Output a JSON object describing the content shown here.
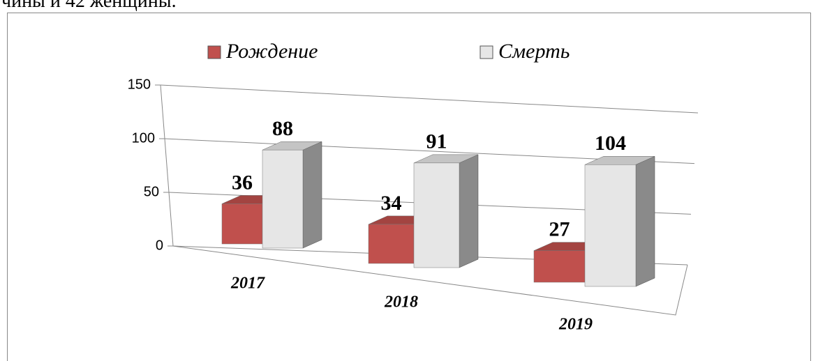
{
  "page_text": "чины и 42 женщины.",
  "chart_data": {
    "type": "bar3d",
    "categories": [
      "2017",
      "2018",
      "2019"
    ],
    "series": [
      {
        "name": "Рождение",
        "color": "#c0504d",
        "values": [
          36,
          34,
          27
        ]
      },
      {
        "name": "Смерть",
        "color": "#e6e6e6",
        "values": [
          88,
          91,
          104
        ]
      }
    ],
    "ylim": [
      0,
      150
    ],
    "yticks": [
      0,
      50,
      100,
      150
    ],
    "grid": true,
    "legend": "top"
  }
}
